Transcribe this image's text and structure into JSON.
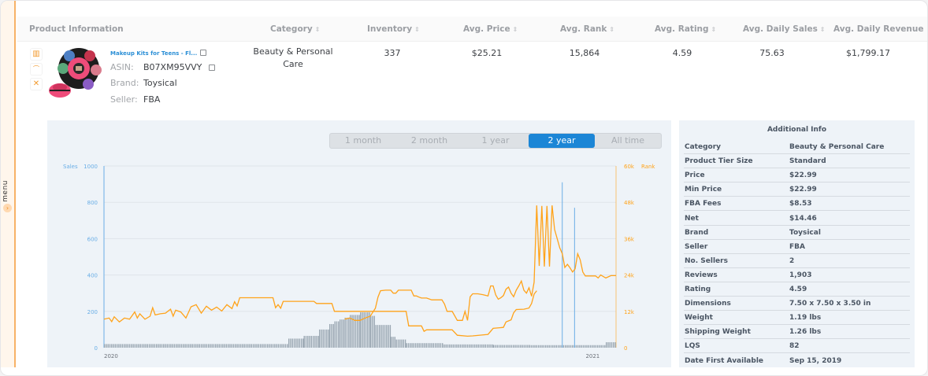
{
  "sidebar": {
    "menu_label": "menu",
    "toggle_icon": "chevron-right-icon"
  },
  "table": {
    "headers": [
      {
        "label": "Product Information",
        "sortable": false
      },
      {
        "label": "Category",
        "sortable": true
      },
      {
        "label": "Inventory",
        "sortable": true
      },
      {
        "label": "Avg. Price",
        "sortable": true
      },
      {
        "label": "Avg. Rank",
        "sortable": true
      },
      {
        "label": "Avg. Rating",
        "sortable": true
      },
      {
        "label": "Avg. Daily Sales",
        "sortable": true
      },
      {
        "label": "Avg. Daily Revenue",
        "sortable": true
      }
    ],
    "sort_glyph": "⇕",
    "row": {
      "actions": [
        {
          "icon": "bar-chart-icon",
          "glyph": "▥"
        },
        {
          "icon": "gauge-icon",
          "glyph": "⌒"
        },
        {
          "icon": "close-icon",
          "glyph": "✕"
        }
      ],
      "title": "Makeup Kits for Teens - Fl...",
      "asin_label": "ASIN:",
      "asin": "B07XM95VVY",
      "brand_label": "Brand:",
      "brand": "Toysical",
      "seller_label": "Seller:",
      "seller": "FBA",
      "category": "Beauty & Personal Care",
      "inventory": "337",
      "avg_price": "$25.21",
      "avg_rank": "15,864",
      "avg_rating": "4.59",
      "avg_daily_sales": "75.63",
      "avg_daily_revenue": "$1,799.17"
    }
  },
  "range_selector": {
    "options": [
      "1 month",
      "2 month",
      "1 year",
      "2 year",
      "All time"
    ],
    "selected": "2 year"
  },
  "additional_info": {
    "title": "Additional Info",
    "rows": [
      {
        "k": "Category",
        "v": "Beauty & Personal Care"
      },
      {
        "k": "Product Tier Size",
        "v": "Standard"
      },
      {
        "k": "Price",
        "v": "$22.99"
      },
      {
        "k": "Min Price",
        "v": "$22.99"
      },
      {
        "k": "FBA Fees",
        "v": "$8.53"
      },
      {
        "k": "Net",
        "v": "$14.46"
      },
      {
        "k": "Brand",
        "v": "Toysical"
      },
      {
        "k": "Seller",
        "v": "FBA"
      },
      {
        "k": "No. Sellers",
        "v": "2"
      },
      {
        "k": "Reviews",
        "v": "1,903"
      },
      {
        "k": "Rating",
        "v": "4.59"
      },
      {
        "k": "Dimensions",
        "v": "7.50 x 7.50 x 3.50 in"
      },
      {
        "k": "Weight",
        "v": "1.19 lbs"
      },
      {
        "k": "Shipping Weight",
        "v": "1.26 lbs"
      },
      {
        "k": "LQS",
        "v": "82"
      },
      {
        "k": "Date First Available",
        "v": "Sep 15, 2019"
      }
    ]
  },
  "colors": {
    "accent": "#f7b267",
    "sales": "#6aaee6",
    "rank": "#ffa31a",
    "bars": "#9aa7b2",
    "selected": "#1c86d6"
  },
  "chart_data": {
    "type": "bar+line",
    "title": "",
    "left_axis": {
      "label": "Sales",
      "ticks": [
        0,
        200,
        400,
        600,
        800,
        1000
      ],
      "ylim": [
        0,
        1000
      ],
      "color": "#6aaee6"
    },
    "right_axis": {
      "label": "Rank",
      "ticks": [
        "0",
        "12k",
        "24k",
        "36k",
        "48k",
        "60k"
      ],
      "ylim": [
        0,
        60000
      ],
      "color": "#ffa31a"
    },
    "x_ticks": [
      {
        "label": "2020",
        "pos": 0.0
      },
      {
        "label": "2021",
        "pos": 0.953
      }
    ],
    "grid": true,
    "sales_bars": [
      {
        "from": 0.0,
        "to": 0.36,
        "value": 20
      },
      {
        "from": 0.36,
        "to": 0.39,
        "value": 50
      },
      {
        "from": 0.39,
        "to": 0.42,
        "value": 65
      },
      {
        "from": 0.42,
        "to": 0.44,
        "value": 100
      },
      {
        "from": 0.44,
        "to": 0.45,
        "value": 130
      },
      {
        "from": 0.45,
        "to": 0.46,
        "value": 145
      },
      {
        "from": 0.46,
        "to": 0.47,
        "value": 155
      },
      {
        "from": 0.47,
        "to": 0.48,
        "value": 165
      },
      {
        "from": 0.48,
        "to": 0.5,
        "value": 180
      },
      {
        "from": 0.5,
        "to": 0.52,
        "value": 195
      },
      {
        "from": 0.52,
        "to": 0.53,
        "value": 175
      },
      {
        "from": 0.53,
        "to": 0.56,
        "value": 125
      },
      {
        "from": 0.56,
        "to": 0.57,
        "value": 60
      },
      {
        "from": 0.57,
        "to": 0.59,
        "value": 45
      },
      {
        "from": 0.59,
        "to": 0.66,
        "value": 25
      },
      {
        "from": 0.66,
        "to": 0.76,
        "value": 18
      },
      {
        "from": 0.76,
        "to": 0.83,
        "value": 15
      },
      {
        "from": 0.83,
        "to": 0.98,
        "value": 14
      },
      {
        "from": 0.98,
        "to": 1.0,
        "value": 30
      }
    ],
    "sales_spikes": [
      {
        "pos": 0.895,
        "value": 910
      },
      {
        "pos": 0.919,
        "value": 770
      }
    ],
    "rank_line": [
      [
        0.0,
        9400
      ],
      [
        0.01,
        9800
      ],
      [
        0.015,
        8600
      ],
      [
        0.02,
        10200
      ],
      [
        0.03,
        8500
      ],
      [
        0.04,
        9800
      ],
      [
        0.05,
        9400
      ],
      [
        0.06,
        11800
      ],
      [
        0.065,
        9800
      ],
      [
        0.07,
        11200
      ],
      [
        0.08,
        9400
      ],
      [
        0.09,
        10400
      ],
      [
        0.095,
        13200
      ],
      [
        0.1,
        10800
      ],
      [
        0.11,
        11200
      ],
      [
        0.12,
        11400
      ],
      [
        0.13,
        12700
      ],
      [
        0.135,
        10400
      ],
      [
        0.14,
        12400
      ],
      [
        0.15,
        11800
      ],
      [
        0.16,
        9800
      ],
      [
        0.17,
        13500
      ],
      [
        0.18,
        14200
      ],
      [
        0.19,
        11400
      ],
      [
        0.2,
        13700
      ],
      [
        0.21,
        12400
      ],
      [
        0.22,
        13400
      ],
      [
        0.23,
        12100
      ],
      [
        0.24,
        14200
      ],
      [
        0.25,
        12900
      ],
      [
        0.255,
        15200
      ],
      [
        0.26,
        13800
      ],
      [
        0.265,
        16500
      ],
      [
        0.33,
        16500
      ],
      [
        0.335,
        13200
      ],
      [
        0.34,
        14200
      ],
      [
        0.345,
        13000
      ],
      [
        0.35,
        15300
      ],
      [
        0.41,
        15300
      ],
      [
        0.415,
        14600
      ],
      [
        0.445,
        14600
      ],
      [
        0.45,
        12000
      ],
      [
        0.59,
        12000
      ],
      [
        0.595,
        7200
      ],
      [
        0.62,
        7200
      ],
      [
        0.625,
        5400
      ],
      [
        0.63,
        5900
      ],
      [
        0.68,
        5900
      ],
      [
        0.69,
        4100
      ],
      [
        0.71,
        3800
      ],
      [
        0.72,
        3900
      ],
      [
        0.75,
        4400
      ],
      [
        0.76,
        6400
      ],
      [
        0.78,
        6700
      ],
      [
        0.785,
        8500
      ],
      [
        0.795,
        9200
      ],
      [
        0.8,
        11500
      ],
      [
        0.805,
        12600
      ],
      [
        0.82,
        12700
      ],
      [
        0.83,
        13100
      ],
      [
        0.835,
        14600
      ],
      [
        0.84,
        17700
      ],
      [
        0.845,
        18800
      ],
      [
        0.85,
        19700
      ],
      [
        0.86,
        22900
      ],
      [
        0.87,
        22900
      ],
      [
        0.875,
        23000
      ],
      [
        0.91,
        23000
      ],
      [
        0.915,
        19000
      ],
      [
        0.92,
        24400
      ],
      [
        0.925,
        24600
      ],
      [
        0.93,
        22000
      ],
      [
        0.935,
        20600
      ],
      [
        0.94,
        23600
      ],
      [
        0.96,
        23600
      ],
      [
        0.965,
        24400
      ],
      [
        0.97,
        23400
      ],
      [
        0.99,
        23400
      ],
      [
        0.995,
        20800
      ],
      [
        1.0,
        20000
      ],
      [
        1.0,
        20000
      ]
    ],
    "rank_line_2": [
      [
        0.47,
        9400
      ],
      [
        0.48,
        9800
      ],
      [
        0.49,
        9000
      ],
      [
        0.5,
        9000
      ],
      [
        0.51,
        9800
      ],
      [
        0.52,
        10400
      ],
      [
        0.53,
        13000
      ],
      [
        0.535,
        16700
      ],
      [
        0.54,
        18800
      ],
      [
        0.55,
        19000
      ],
      [
        0.56,
        19000
      ],
      [
        0.565,
        18000
      ],
      [
        0.57,
        18000
      ],
      [
        0.575,
        19000
      ],
      [
        0.6,
        19000
      ],
      [
        0.605,
        17100
      ],
      [
        0.61,
        17100
      ],
      [
        0.615,
        16700
      ],
      [
        0.62,
        16400
      ],
      [
        0.63,
        16400
      ],
      [
        0.64,
        15800
      ],
      [
        0.66,
        15800
      ],
      [
        0.665,
        14400
      ],
      [
        0.67,
        12000
      ],
      [
        0.675,
        12000
      ],
      [
        0.68,
        12000
      ],
      [
        0.69,
        9000
      ],
      [
        0.7,
        9000
      ],
      [
        0.705,
        12000
      ],
      [
        0.71,
        9000
      ],
      [
        0.715,
        16800
      ],
      [
        0.72,
        17800
      ],
      [
        0.73,
        17800
      ],
      [
        0.74,
        17500
      ],
      [
        0.75,
        17100
      ],
      [
        0.755,
        20400
      ],
      [
        0.76,
        20400
      ],
      [
        0.765,
        17400
      ],
      [
        0.77,
        16000
      ],
      [
        0.775,
        16500
      ],
      [
        0.78,
        17200
      ],
      [
        0.785,
        19300
      ],
      [
        0.79,
        20000
      ],
      [
        0.795,
        18000
      ],
      [
        0.8,
        16800
      ],
      [
        0.805,
        19000
      ],
      [
        0.81,
        20400
      ],
      [
        0.815,
        22000
      ],
      [
        0.82,
        19000
      ],
      [
        0.825,
        18000
      ],
      [
        0.83,
        19800
      ],
      [
        0.835,
        17000
      ],
      [
        0.84,
        21600
      ],
      [
        0.845,
        47000
      ],
      [
        0.85,
        27000
      ],
      [
        0.855,
        46800
      ],
      [
        0.86,
        26800
      ],
      [
        0.865,
        46800
      ],
      [
        0.87,
        26800
      ],
      [
        0.875,
        47000
      ],
      [
        0.88,
        39000
      ],
      [
        0.885,
        36000
      ],
      [
        0.89,
        33000
      ],
      [
        0.895,
        31000
      ],
      [
        0.9,
        26500
      ],
      [
        0.905,
        27500
      ],
      [
        0.91,
        26400
      ],
      [
        0.915,
        25000
      ],
      [
        0.92,
        26000
      ],
      [
        0.925,
        31000
      ],
      [
        0.93,
        29000
      ],
      [
        0.935,
        25000
      ],
      [
        0.94,
        23700
      ],
      [
        0.96,
        23700
      ],
      [
        0.965,
        23000
      ],
      [
        0.97,
        24000
      ],
      [
        0.98,
        23000
      ],
      [
        0.99,
        23800
      ],
      [
        1.0,
        23800
      ]
    ]
  }
}
